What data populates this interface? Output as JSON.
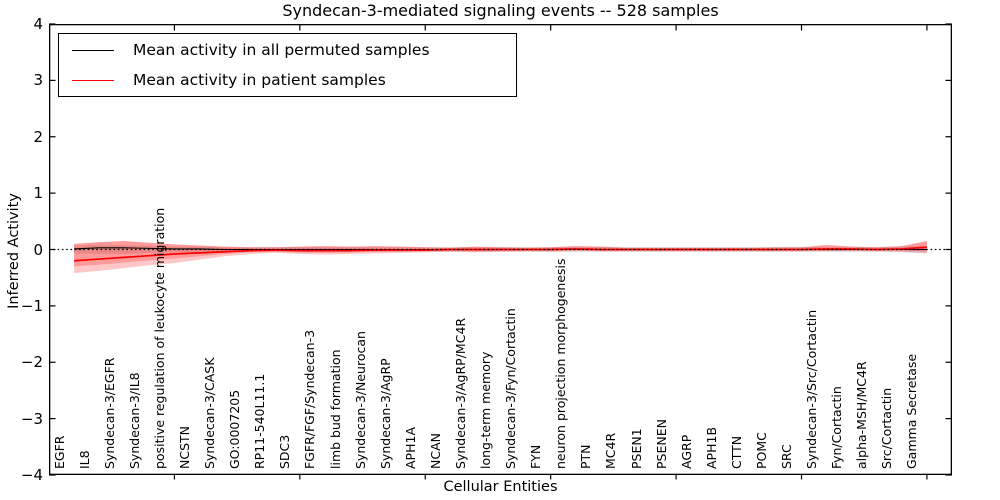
{
  "chart_data": {
    "type": "line",
    "title": "Syndecan-3-mediated signaling events -- 528 samples",
    "xlabel": "Cellular Entities",
    "ylabel": "Inferred Activity",
    "ylim": [
      -4,
      4
    ],
    "ytick_values": [
      4,
      3,
      2,
      1,
      0,
      -1,
      -2,
      -3,
      -4
    ],
    "ytick_labels": [
      "4",
      "3",
      "2",
      "1",
      "0",
      "−1",
      "−2",
      "−3",
      "−4"
    ],
    "xtick_major_interval": 5,
    "grid": false,
    "legend_position": "upper left",
    "zero_line_style": "dotted",
    "zero_line_color": "#000000",
    "categories": [
      "EGFR",
      "IL8",
      "Syndecan-3/EGFR",
      "Syndecan-3/IL8",
      "positive regulation of leukocyte migration",
      "NCSTN",
      "Syndecan-3/CASK",
      "GO:0007205",
      "RP11-540L11.1",
      "SDC3",
      "FGFR/FGF/Syndecan-3",
      "limb bud formation",
      "Syndecan-3/Neurocan",
      "Syndecan-3/AgRP",
      "APH1A",
      "NCAN",
      "Syndecan-3/AgRP/MC4R",
      "long-term memory",
      "Syndecan-3/Fyn/Cortactin",
      "FYN",
      "neuron projection morphogenesis",
      "PTN",
      "MC4R",
      "PSEN1",
      "PSENEN",
      "AGRP",
      "APH1B",
      "CTTN",
      "POMC",
      "SRC",
      "Syndecan-3/Src/Cortactin",
      "Fyn/Cortactin",
      "alpha-MSH/MC4R",
      "Src/Cortactin",
      "Gamma Secretase"
    ],
    "series": [
      {
        "name": "Mean activity in all permuted samples",
        "color": "#000000",
        "band_color": "rgba(0,0,0,0.13)",
        "values": [
          0.01,
          0.03,
          0.03,
          0.02,
          0.01,
          0.01,
          0,
          0,
          0,
          0,
          0,
          0,
          0,
          0,
          0,
          0,
          0,
          0,
          0,
          0,
          0,
          0,
          0,
          0,
          0,
          0,
          0,
          0,
          0,
          0,
          0,
          0,
          0,
          0,
          0
        ],
        "band_top": [
          0.07,
          0.08,
          0.08,
          0.06,
          0.05,
          0.05,
          0.04,
          0.04,
          0.04,
          0.04,
          0.04,
          0.04,
          0.04,
          0.04,
          0.04,
          0.04,
          0.04,
          0.04,
          0.04,
          0.04,
          0.04,
          0.04,
          0.04,
          0.04,
          0.04,
          0.04,
          0.04,
          0.04,
          0.04,
          0.04,
          0.04,
          0.04,
          0.04,
          0.05,
          0.07
        ],
        "band_bottom": [
          -0.07,
          -0.08,
          -0.08,
          -0.06,
          -0.05,
          -0.05,
          -0.04,
          -0.04,
          -0.04,
          -0.04,
          -0.04,
          -0.04,
          -0.04,
          -0.04,
          -0.04,
          -0.04,
          -0.04,
          -0.04,
          -0.04,
          -0.04,
          -0.04,
          -0.04,
          -0.04,
          -0.04,
          -0.04,
          -0.04,
          -0.04,
          -0.04,
          -0.04,
          -0.04,
          -0.04,
          -0.04,
          -0.04,
          -0.05,
          -0.07
        ]
      },
      {
        "name": "Mean activity in patient samples",
        "color": "#ff0000",
        "band_color": "rgba(255,0,0,0.22)",
        "values": [
          -0.2,
          -0.17,
          -0.14,
          -0.11,
          -0.08,
          -0.06,
          -0.04,
          -0.02,
          -0.01,
          -0.02,
          -0.02,
          -0.02,
          -0.01,
          -0.01,
          -0.01,
          0,
          0,
          0,
          0,
          0,
          0.01,
          0,
          0,
          0,
          0,
          0,
          0,
          0,
          0,
          0,
          0.01,
          0.01,
          0,
          0.01,
          0.04
        ],
        "band_top": [
          0.1,
          0.13,
          0.15,
          0.12,
          0.09,
          0.07,
          0.05,
          0.04,
          0.04,
          0.05,
          0.06,
          0.05,
          0.06,
          0.05,
          0.04,
          0.03,
          0.05,
          0.04,
          0.03,
          0.04,
          0.06,
          0.05,
          0.03,
          0.03,
          0.03,
          0.03,
          0.03,
          0.03,
          0.04,
          0.04,
          0.08,
          0.05,
          0.04,
          0.06,
          0.15
        ],
        "band_bottom": [
          -0.42,
          -0.38,
          -0.33,
          -0.28,
          -0.24,
          -0.18,
          -0.12,
          -0.08,
          -0.06,
          -0.08,
          -0.09,
          -0.08,
          -0.07,
          -0.06,
          -0.05,
          -0.04,
          -0.05,
          -0.04,
          -0.03,
          -0.04,
          -0.03,
          -0.03,
          -0.03,
          -0.03,
          -0.03,
          -0.03,
          -0.03,
          -0.03,
          -0.03,
          -0.03,
          -0.03,
          -0.03,
          -0.03,
          -0.04,
          -0.06
        ],
        "band_inner_bottom": [
          -0.3,
          -0.27,
          -0.23,
          -0.19,
          -0.16,
          -0.12,
          -0.08,
          -0.05,
          -0.04,
          -0.05,
          -0.06,
          -0.05,
          -0.04,
          -0.04,
          -0.03,
          -0.02,
          -0.03,
          -0.02,
          -0.02,
          -0.02,
          -0.01,
          -0.02,
          -0.02,
          -0.02,
          -0.02,
          -0.02,
          -0.02,
          -0.02,
          -0.02,
          -0.02,
          -0.02,
          -0.02,
          -0.02,
          -0.02,
          -0.03
        ]
      }
    ]
  }
}
